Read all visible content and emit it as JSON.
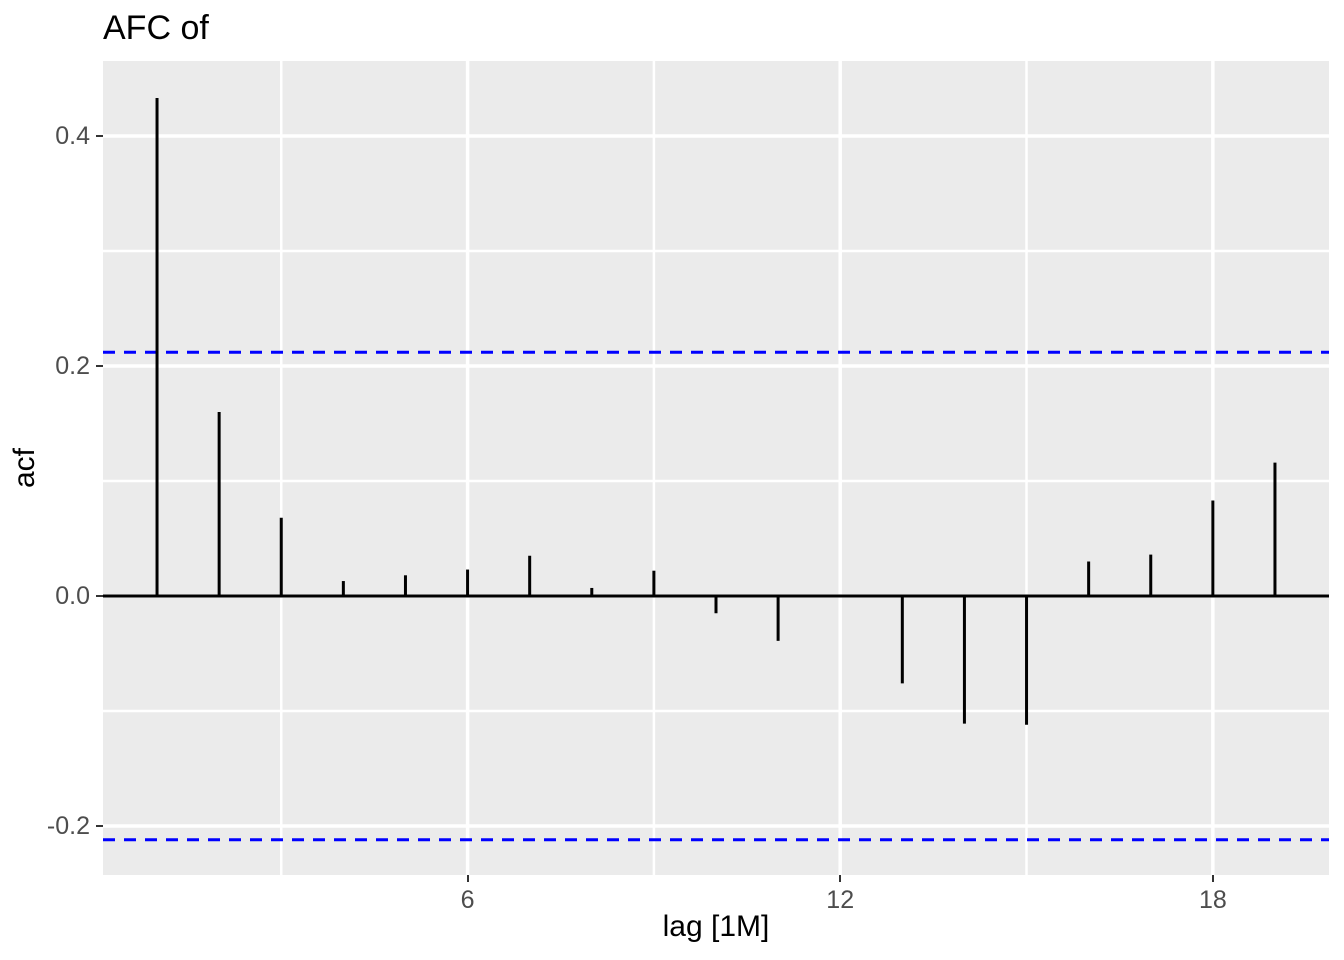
{
  "title": "AFC of",
  "chart_data": {
    "type": "bar",
    "subtype": "acf-lollipop",
    "title": "AFC of",
    "xlabel": "lag [1M]",
    "ylabel": "acf",
    "x": [
      1,
      2,
      3,
      4,
      5,
      6,
      7,
      8,
      9,
      10,
      11,
      12,
      13,
      14,
      15,
      16,
      17,
      18,
      19
    ],
    "values": [
      0.433,
      0.16,
      0.068,
      0.013,
      0.018,
      0.023,
      0.035,
      0.007,
      0.022,
      -0.015,
      -0.039,
      0.0,
      -0.076,
      -0.111,
      -0.112,
      0.03,
      0.036,
      0.083,
      0.116
    ],
    "ci_upper": 0.212,
    "ci_lower": -0.212,
    "xlim": [
      0.13,
      19.87
    ],
    "ylim": [
      -0.2426,
      0.4652
    ],
    "x_major_ticks": [
      6,
      12,
      18
    ],
    "x_tick_labels": [
      "6",
      "12",
      "18"
    ],
    "x_minor_gridlines": [
      3,
      9,
      15
    ],
    "y_major_ticks": [
      -0.2,
      0.0,
      0.2,
      0.4
    ],
    "y_tick_labels": [
      "-0.2",
      "0.0",
      "0.2",
      "0.4"
    ],
    "y_minor_gridlines": [
      -0.1,
      0.1,
      0.3
    ],
    "grid": true,
    "legend": "none",
    "colors": {
      "bar": "#000000",
      "zero_line": "#000000",
      "ci_line": "#0000FF",
      "panel_bg": "#EBEBEB",
      "gridline": "#FFFFFF",
      "axis_text": "#4D4D4D",
      "tick_mark": "#333333",
      "title_text": "#000000"
    }
  }
}
